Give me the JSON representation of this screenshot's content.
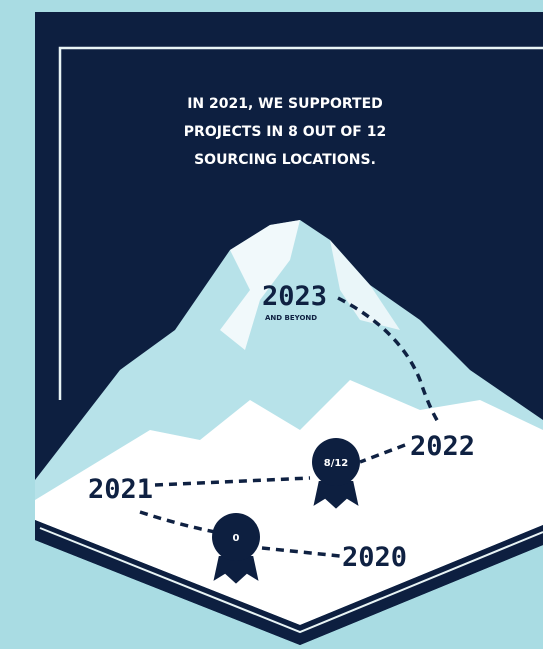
{
  "headline": [
    "IN 2021, WE SUPPORTED",
    "PROJECTS IN 8 OUT OF 12",
    "SOURCING LOCATIONS."
  ],
  "milestones": [
    {
      "year": "2023",
      "note": "AND BEYOND"
    },
    {
      "year": "2022"
    },
    {
      "year": "2021"
    },
    {
      "year": "2020"
    }
  ],
  "badges": [
    {
      "label": "8/12"
    },
    {
      "label": "0"
    }
  ]
}
